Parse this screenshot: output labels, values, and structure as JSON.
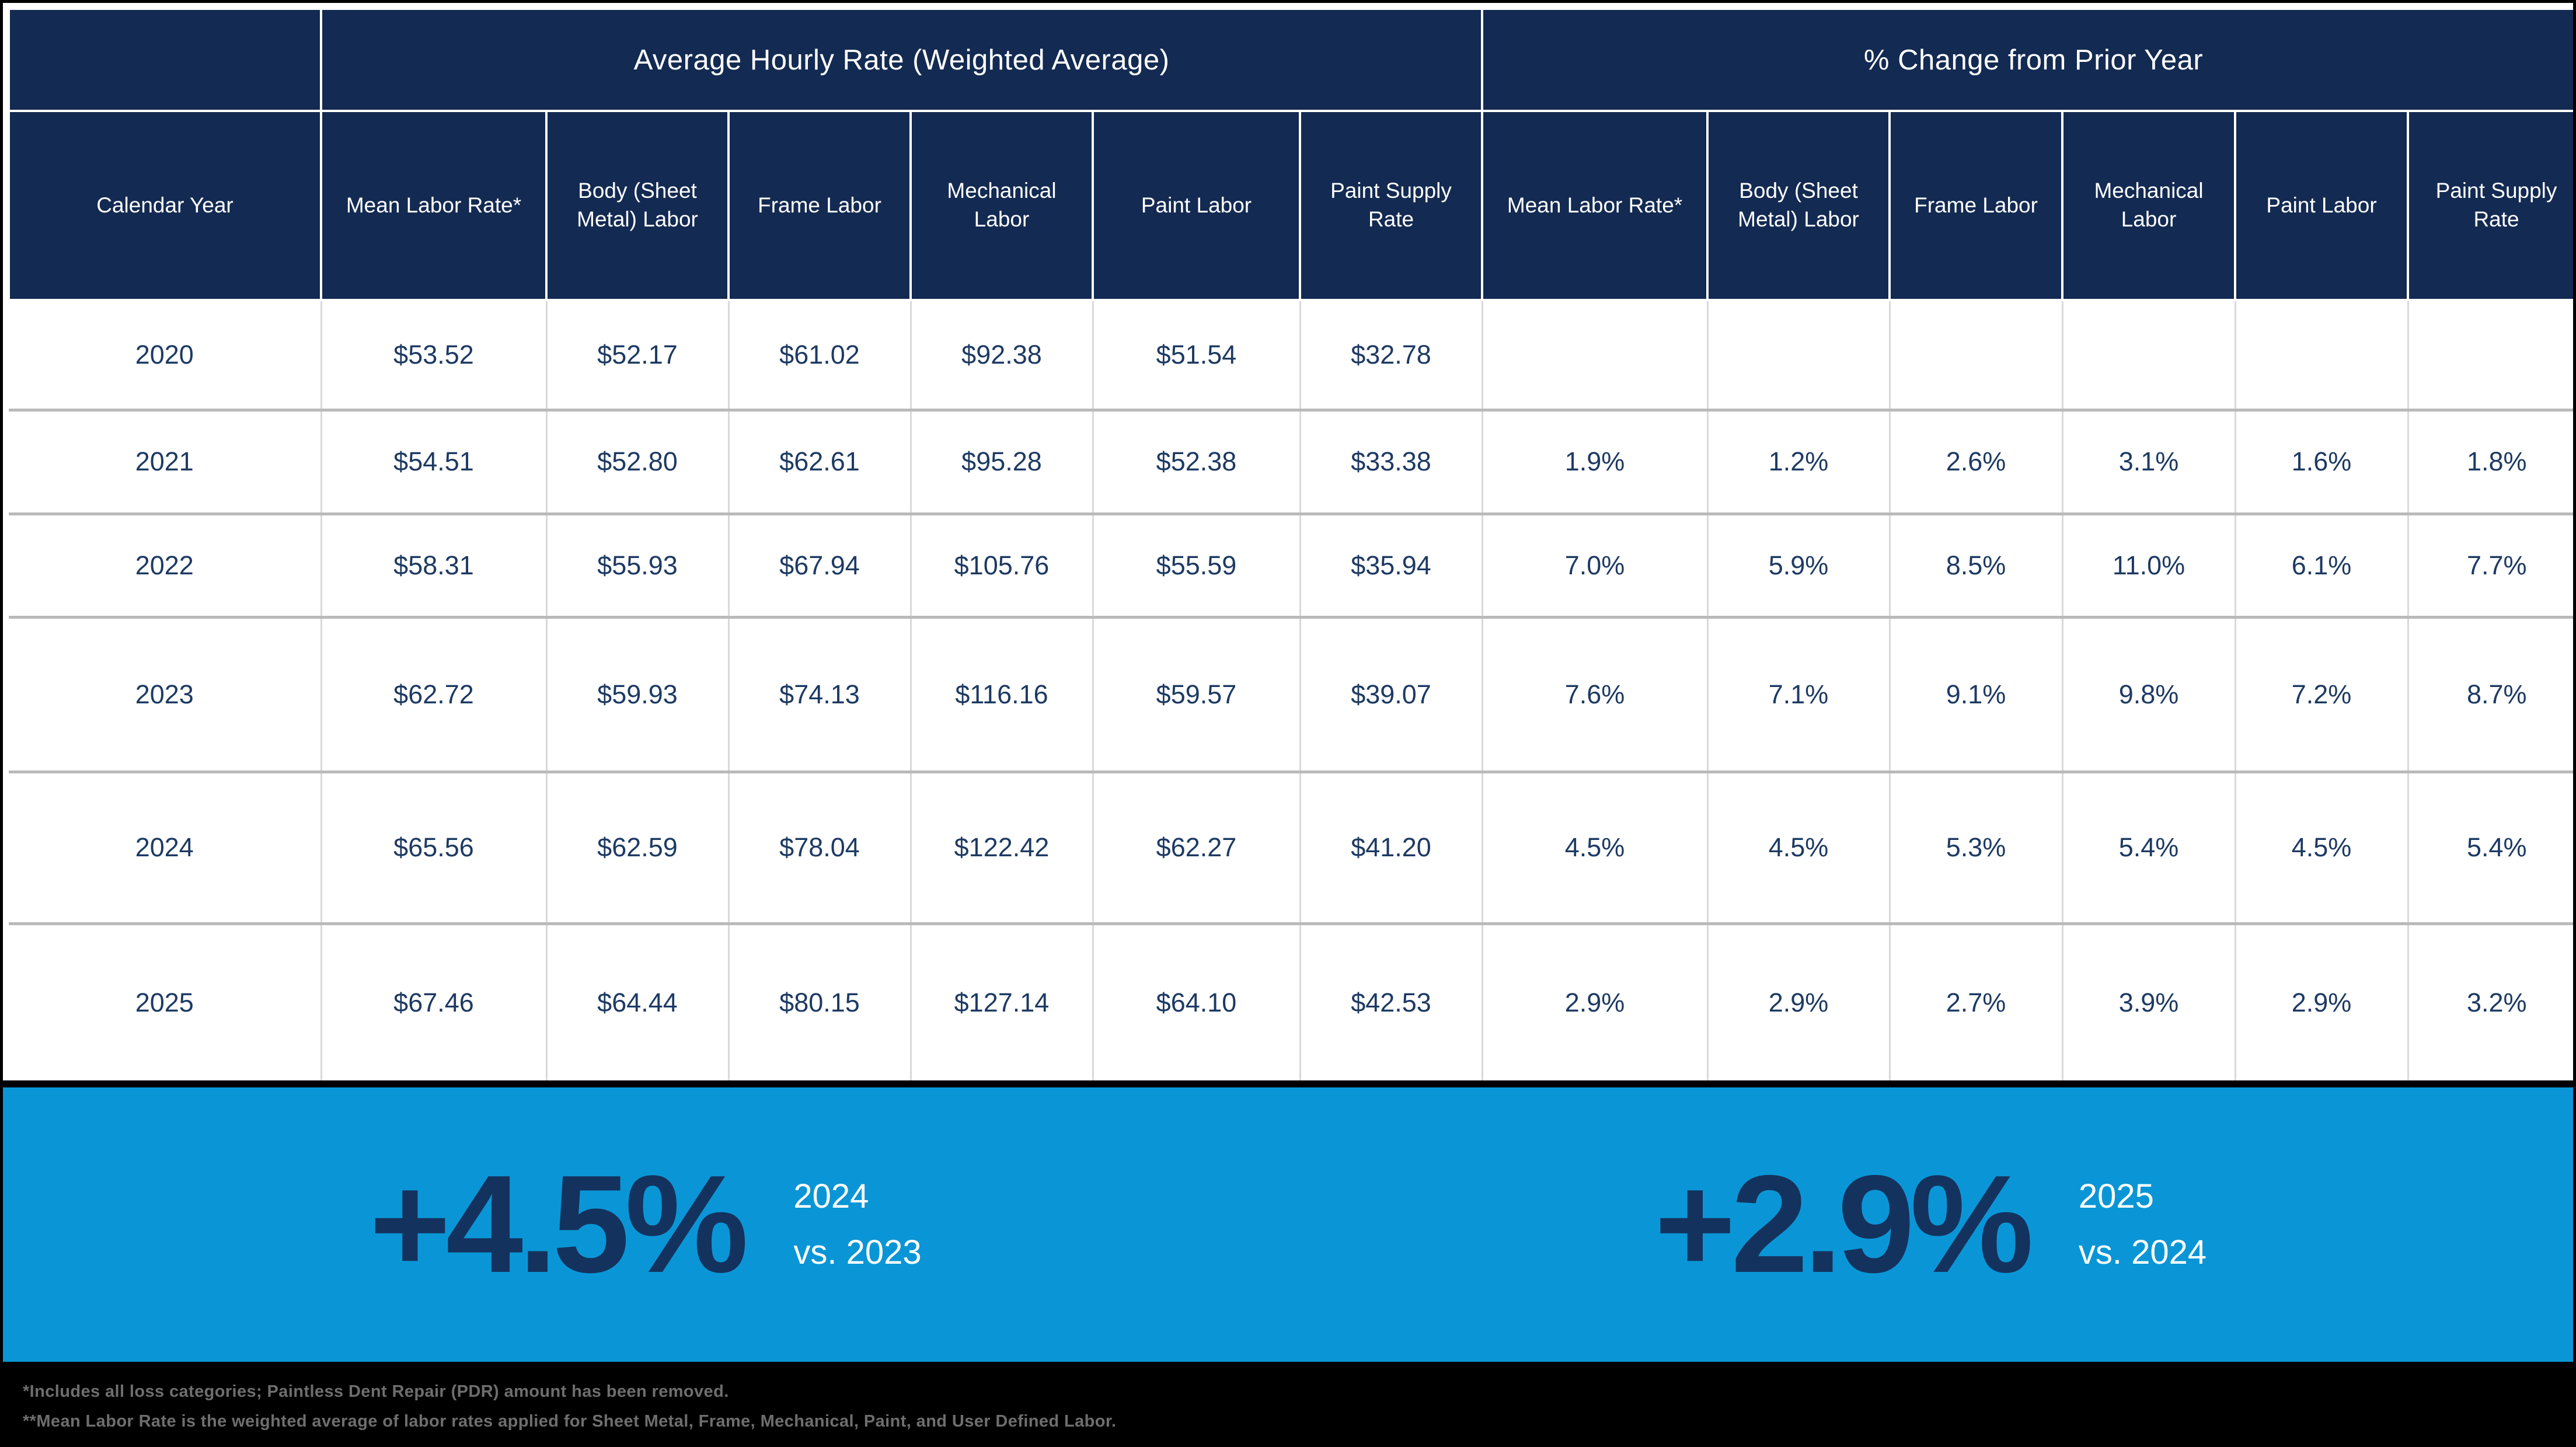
{
  "chart_data": {
    "type": "table",
    "group_headers": [
      "Average Hourly Rate (Weighted Average)",
      "% Change from Prior Year"
    ],
    "columns": [
      "Calendar Year",
      "Mean Labor Rate*",
      "Body (Sheet Metal) Labor",
      "Frame Labor",
      "Mechanical Labor",
      "Paint Labor",
      "Paint Supply Rate",
      "Mean Labor Rate*",
      "Body (Sheet Metal) Labor",
      "Frame Labor",
      "Mechanical Labor",
      "Paint Labor",
      "Paint Supply Rate"
    ],
    "rows": [
      [
        "2020",
        "$53.52",
        "$52.17",
        "$61.02",
        "$92.38",
        "$51.54",
        "$32.78",
        "",
        "",
        "",
        "",
        "",
        ""
      ],
      [
        "2021",
        "$54.51",
        "$52.80",
        "$62.61",
        "$95.28",
        "$52.38",
        "$33.38",
        "1.9%",
        "1.2%",
        "2.6%",
        "3.1%",
        "1.6%",
        "1.8%"
      ],
      [
        "2022",
        "$58.31",
        "$55.93",
        "$67.94",
        "$105.76",
        "$55.59",
        "$35.94",
        "7.0%",
        "5.9%",
        "8.5%",
        "11.0%",
        "6.1%",
        "7.7%"
      ],
      [
        "2023",
        "$62.72",
        "$59.93",
        "$74.13",
        "$116.16",
        "$59.57",
        "$39.07",
        "7.6%",
        "7.1%",
        "9.1%",
        "9.8%",
        "7.2%",
        "8.7%"
      ],
      [
        "2024",
        "$65.56",
        "$62.59",
        "$78.04",
        "$122.42",
        "$62.27",
        "$41.20",
        "4.5%",
        "4.5%",
        "5.3%",
        "5.4%",
        "4.5%",
        "5.4%"
      ],
      [
        "2025",
        "$67.46",
        "$64.44",
        "$80.15",
        "$127.14",
        "$64.10",
        "$42.53",
        "2.9%",
        "2.9%",
        "2.7%",
        "3.9%",
        "2.9%",
        "3.2%"
      ]
    ]
  },
  "highlights": [
    {
      "value": "+4.5%",
      "period": "2024",
      "vs": "vs. 2023"
    },
    {
      "value": "+2.9%",
      "period": "2025",
      "vs": "vs. 2024"
    }
  ],
  "footnotes": [
    "*Includes all loss categories; Paintless Dent Repair (PDR) amount has been removed.",
    "**Mean Labor Rate is the weighted average of labor rates applied for Sheet Metal, Frame, Mechanical, Paint, and User Defined Labor."
  ],
  "colors": {
    "navy": "#132a52",
    "cell-text": "#1d3a63",
    "band-blue": "#0a96d6",
    "band-number": "#14325e",
    "footnote-gray": "#6e6e6e",
    "row-line": "#b9b9b9",
    "col-line": "#d9d9d9"
  }
}
